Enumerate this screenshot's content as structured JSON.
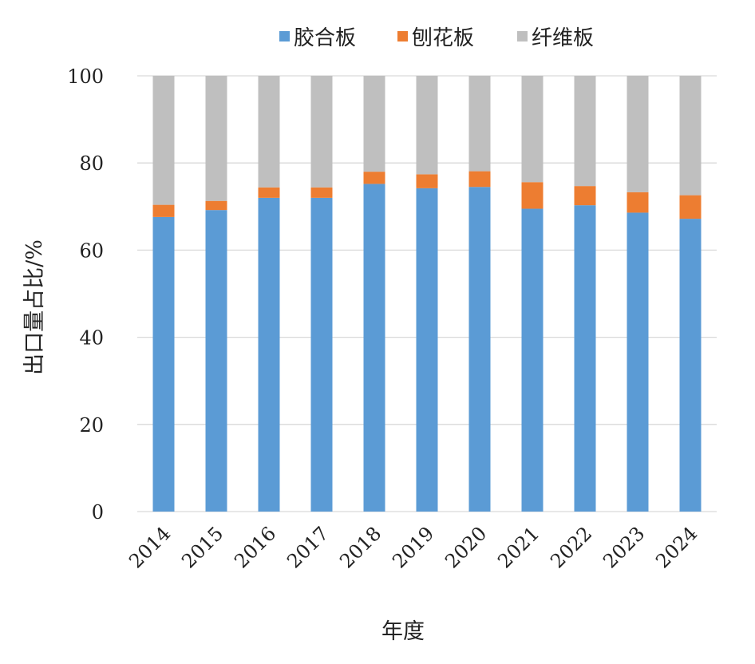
{
  "chart_data": {
    "type": "bar",
    "stacked": true,
    "title": "",
    "xlabel": "年度",
    "ylabel": "出口量占比/%",
    "ylim": [
      0,
      100
    ],
    "yticks": [
      0,
      20,
      40,
      60,
      80,
      100
    ],
    "grid": true,
    "legend_position": "top",
    "categories": [
      "2014",
      "2015",
      "2016",
      "2017",
      "2018",
      "2019",
      "2020",
      "2021",
      "2022",
      "2023",
      "2024"
    ],
    "series": [
      {
        "name": "胶合板",
        "color": "#5b9bd5",
        "values": [
          67.6,
          69.2,
          72.0,
          72.0,
          75.2,
          74.2,
          74.5,
          69.5,
          70.3,
          68.6,
          67.2
        ]
      },
      {
        "name": "刨花板",
        "color": "#ed7d31",
        "values": [
          2.8,
          2.1,
          2.4,
          2.4,
          2.8,
          3.2,
          3.6,
          6.1,
          4.4,
          4.7,
          5.4
        ]
      },
      {
        "name": "纤维板",
        "color": "#bfbfbf",
        "values": [
          29.6,
          28.7,
          25.6,
          25.6,
          22.0,
          22.6,
          21.9,
          24.4,
          25.3,
          26.7,
          27.4
        ]
      }
    ]
  }
}
